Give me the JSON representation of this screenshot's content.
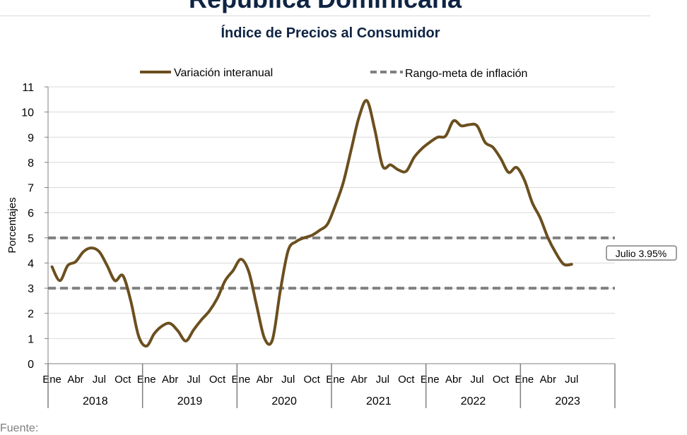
{
  "header": {
    "title": "República Dominicana",
    "subtitle": "Índice de Precios al Consumidor"
  },
  "footer": {
    "source": "Fuente:"
  },
  "colors": {
    "series": "#6b4f1e",
    "target_band": "#808080",
    "grid": "#d9d9d9",
    "title": "#0f2444"
  },
  "chart_data": {
    "type": "line",
    "title": "Índice de Precios al Consumidor",
    "ylabel": "Porcentajes",
    "xlabel": "",
    "ylim": [
      0,
      11
    ],
    "yticks": [
      "0",
      "1",
      "2",
      "3",
      "4",
      "5",
      "6",
      "7",
      "8",
      "9",
      "10",
      "11"
    ],
    "grid": true,
    "legend_position": "top",
    "month_labels": [
      "Ene",
      "Abr",
      "Jul",
      "Oct"
    ],
    "last_month_label": "Jul",
    "years": [
      "2018",
      "2019",
      "2020",
      "2021",
      "2022",
      "2023"
    ],
    "series": [
      {
        "name": "Variación interanual",
        "style": "solid",
        "x": [
          "2018-01",
          "2018-02",
          "2018-03",
          "2018-04",
          "2018-05",
          "2018-06",
          "2018-07",
          "2018-08",
          "2018-09",
          "2018-10",
          "2018-11",
          "2018-12",
          "2019-01",
          "2019-02",
          "2019-03",
          "2019-04",
          "2019-05",
          "2019-06",
          "2019-07",
          "2019-08",
          "2019-09",
          "2019-10",
          "2019-11",
          "2019-12",
          "2020-01",
          "2020-02",
          "2020-03",
          "2020-04",
          "2020-05",
          "2020-06",
          "2020-07",
          "2020-08",
          "2020-09",
          "2020-10",
          "2020-11",
          "2020-12",
          "2021-01",
          "2021-02",
          "2021-03",
          "2021-04",
          "2021-05",
          "2021-06",
          "2021-07",
          "2021-08",
          "2021-09",
          "2021-10",
          "2021-11",
          "2021-12",
          "2022-01",
          "2022-02",
          "2022-03",
          "2022-04",
          "2022-05",
          "2022-06",
          "2022-07",
          "2022-08",
          "2022-09",
          "2022-10",
          "2022-11",
          "2022-12",
          "2023-01",
          "2023-02",
          "2023-03",
          "2023-04",
          "2023-05",
          "2023-06",
          "2023-07"
        ],
        "values": [
          3.85,
          3.3,
          3.9,
          4.05,
          4.45,
          4.6,
          4.45,
          3.9,
          3.3,
          3.5,
          2.5,
          1.1,
          0.7,
          1.2,
          1.5,
          1.6,
          1.3,
          0.9,
          1.35,
          1.75,
          2.1,
          2.6,
          3.3,
          3.7,
          4.15,
          3.65,
          2.3,
          1.0,
          0.95,
          2.9,
          4.5,
          4.85,
          5.0,
          5.1,
          5.3,
          5.55,
          6.3,
          7.2,
          8.5,
          9.8,
          10.45,
          9.3,
          7.85,
          7.9,
          7.7,
          7.65,
          8.2,
          8.55,
          8.8,
          9.0,
          9.05,
          9.65,
          9.45,
          9.5,
          9.45,
          8.8,
          8.6,
          8.15,
          7.6,
          7.8,
          7.3,
          6.4,
          5.8,
          5.0,
          4.4,
          3.95,
          3.95
        ]
      },
      {
        "name": "Rango-meta de inflación",
        "style": "dashed",
        "bounds": [
          3,
          5
        ]
      }
    ],
    "annotations": [
      {
        "text": "Julio 3.95%",
        "x": "2023-07",
        "y": 3.95
      }
    ]
  }
}
